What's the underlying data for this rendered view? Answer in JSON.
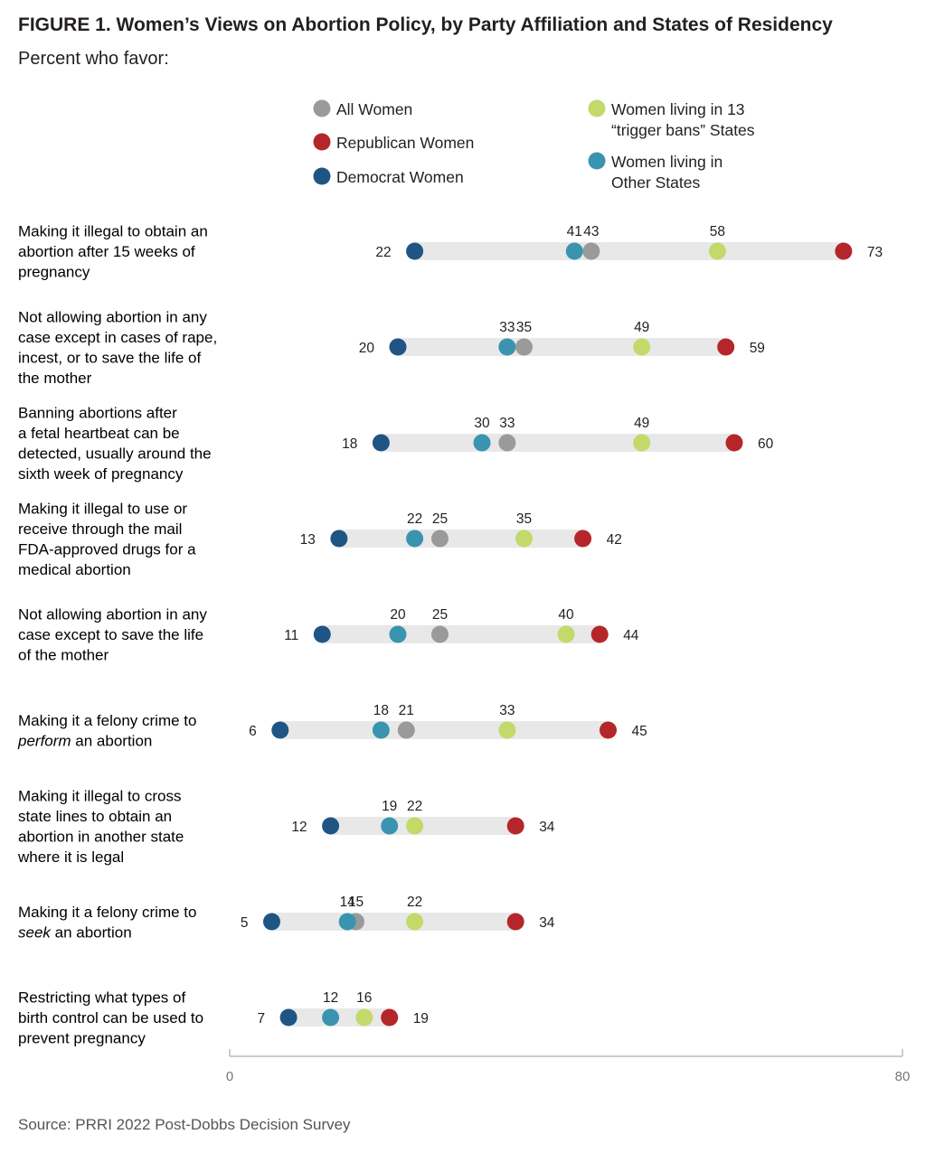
{
  "title": "FIGURE 1.  Women’s Views on Abortion Policy, by Party Affiliation and States of Residency",
  "subtitle": "Percent who favor:",
  "source": "Source:  PRRI 2022 Post-Dobbs Decision Survey",
  "colors": {
    "all_women": "#9a9a9a",
    "republican": "#b5262b",
    "democrat": "#1f5585",
    "trigger": "#c3d96a",
    "other_states": "#3a94b0",
    "track": "#e8e8e8",
    "axis": "#cccccc"
  },
  "legend": [
    {
      "key": "all_women",
      "lines": [
        "All Women"
      ]
    },
    {
      "key": "republican",
      "lines": [
        "Republican Women"
      ]
    },
    {
      "key": "democrat",
      "lines": [
        "Democrat Women"
      ]
    },
    {
      "key": "trigger",
      "lines": [
        "Women living in 13",
        "“trigger bans” States"
      ]
    },
    {
      "key": "other_states",
      "lines": [
        "Women living in",
        "Other States"
      ]
    }
  ],
  "chart_data": {
    "type": "dot-range",
    "title": "FIGURE 1.  Women’s Views on Abortion Policy, by Party Affiliation and States of Residency",
    "xlim": [
      0,
      80
    ],
    "x_ticks": [
      "0",
      "80"
    ],
    "series": [
      "Democrat Women",
      "Women living in Other States",
      "All Women",
      "Women living in 13 “trigger bans” States",
      "Republican Women"
    ],
    "categories": [
      {
        "label": [
          "Making it illegal to obtain an",
          "abortion after 15 weeks of",
          "pregnancy"
        ],
        "democrat": 22,
        "other_states": 41,
        "all_women": 43,
        "trigger": 58,
        "republican": 73
      },
      {
        "label": [
          "Not allowing abortion in any",
          "case except in cases of rape,",
          "incest, or to save the life of",
          "the mother"
        ],
        "democrat": 20,
        "other_states": 33,
        "all_women": 35,
        "trigger": 49,
        "republican": 59
      },
      {
        "label": [
          "Banning abortions after",
          "a fetal heartbeat can be",
          "detected, usually around the",
          "sixth week of pregnancy"
        ],
        "democrat": 18,
        "other_states": 30,
        "all_women": 33,
        "trigger": 49,
        "republican": 60
      },
      {
        "label": [
          "Making it illegal to use or",
          "receive through the mail",
          "FDA-approved drugs for a",
          "medical abortion"
        ],
        "democrat": 13,
        "other_states": 22,
        "all_women": 25,
        "trigger": 35,
        "republican": 42
      },
      {
        "label": [
          "Not allowing abortion in any",
          "case except to save the life",
          "of the mother"
        ],
        "democrat": 11,
        "other_states": 20,
        "all_women": 25,
        "trigger": 40,
        "republican": 44
      },
      {
        "label": [
          "Making it a felony crime to",
          "*perform* an abortion"
        ],
        "democrat": 6,
        "other_states": 18,
        "all_women": 21,
        "trigger": 33,
        "republican": 45
      },
      {
        "label": [
          "Making it illegal to cross",
          "state lines to obtain an",
          "abortion in another state",
          "where it is legal"
        ],
        "democrat": 12,
        "other_states": 19,
        "all_women": null,
        "trigger": 22,
        "republican": 34
      },
      {
        "label": [
          "Making it a felony crime to",
          "*seek* an abortion"
        ],
        "democrat": 5,
        "other_states": 14,
        "all_women": 15,
        "trigger": 22,
        "republican": 34
      },
      {
        "label": [
          "Restricting what types of",
          "birth control can be used to",
          "prevent pregnancy"
        ],
        "democrat": 7,
        "other_states": 12,
        "all_women": null,
        "trigger": 16,
        "republican": 19
      }
    ]
  }
}
